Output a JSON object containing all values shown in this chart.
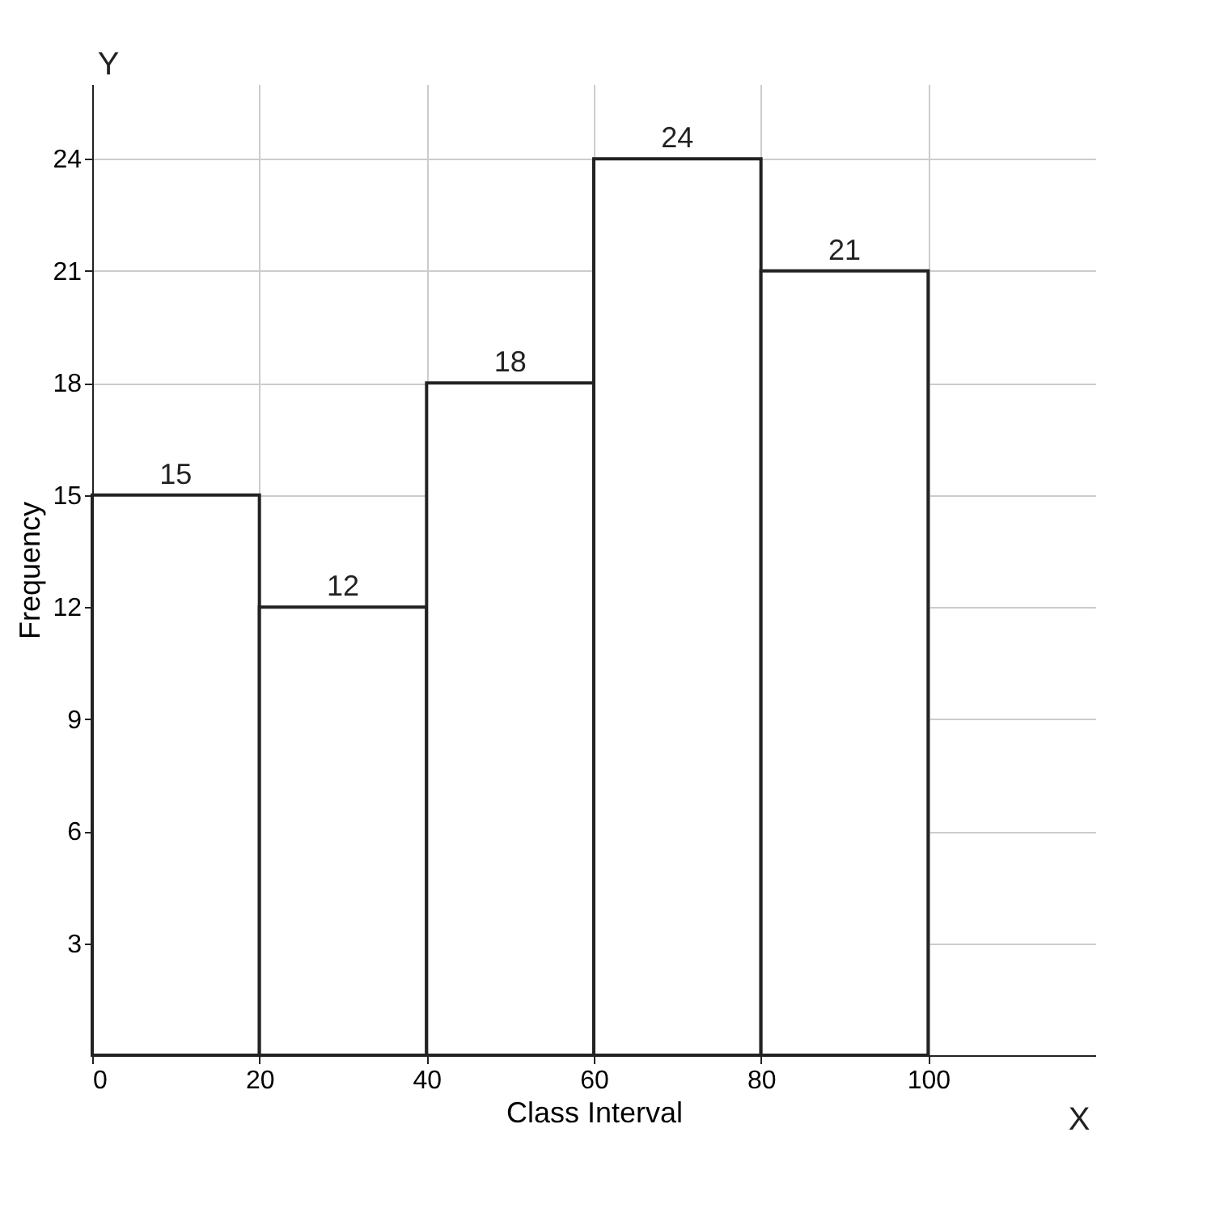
{
  "chart_data": {
    "type": "histogram",
    "xlabel": "Class Interval",
    "ylabel": "Frequency",
    "bins": [
      0,
      20,
      40,
      60,
      80,
      100
    ],
    "values": [
      15,
      12,
      18,
      24,
      21
    ],
    "color": "#ffffff",
    "xlim": [
      0,
      120
    ],
    "ylim": [
      0,
      26
    ],
    "xticks": [
      0,
      20,
      40,
      60,
      80,
      100
    ],
    "yticks": [
      3,
      6,
      9,
      12,
      15,
      18,
      21,
      24
    ],
    "grid": true,
    "data_labels": true,
    "annotations": [
      "X",
      "Y"
    ]
  }
}
